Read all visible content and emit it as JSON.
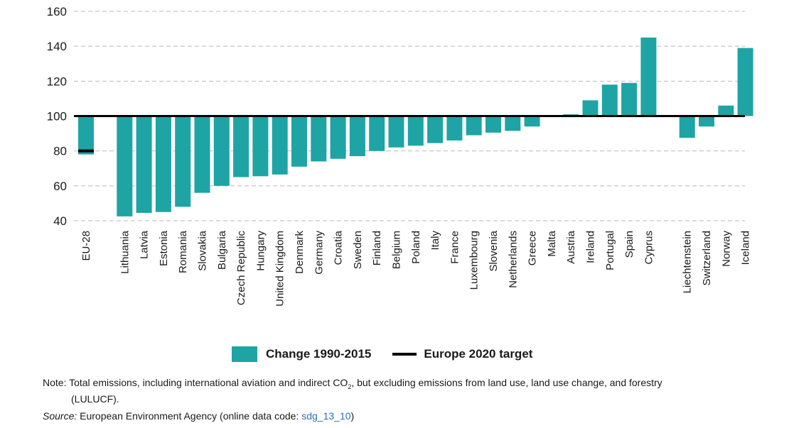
{
  "chart_data": {
    "type": "bar",
    "baseline": 100,
    "ylim": [
      40,
      160
    ],
    "yticks": [
      40,
      60,
      80,
      100,
      120,
      140,
      160
    ],
    "grid": true,
    "legend_position": "bottom",
    "categories": [
      "EU-28",
      "Lithuania",
      "Latvia",
      "Estonia",
      "Romania",
      "Slovakia",
      "Bulgaria",
      "Czech Republic",
      "Hungary",
      "United Kingdom",
      "Denmark",
      "Germany",
      "Croatia",
      "Sweden",
      "Finland",
      "Belgium",
      "Poland",
      "Italy",
      "France",
      "Luxembourg",
      "Slovenia",
      "Netherlands",
      "Greece",
      "Malta",
      "Austria",
      "Ireland",
      "Portugal",
      "Spain",
      "Cyprus",
      "Liechtenstein",
      "Switzerland",
      "Norway",
      "Iceland"
    ],
    "groups": [
      1,
      28,
      4
    ],
    "series": [
      {
        "name": "Change 1990-2015",
        "type": "bar",
        "color": "#1ea4a4",
        "values": [
          78,
          42.5,
          44.5,
          45,
          48,
          56,
          60,
          65,
          65.5,
          66.5,
          71,
          74,
          75.5,
          77,
          80,
          82,
          83,
          84.5,
          86,
          89,
          90.5,
          91.5,
          94,
          99.5,
          101,
          109,
          118,
          119,
          145,
          87.5,
          94,
          106,
          139
        ]
      },
      {
        "name": "Europe 2020 target",
        "type": "line",
        "color": "#000000",
        "values": [
          80,
          null,
          null,
          null,
          null,
          null,
          null,
          null,
          null,
          null,
          null,
          null,
          null,
          null,
          null,
          null,
          null,
          null,
          null,
          null,
          null,
          null,
          null,
          null,
          null,
          null,
          null,
          null,
          null,
          null,
          null,
          null,
          null
        ]
      }
    ]
  },
  "legend": {
    "bar_label": "Change 1990-2015",
    "line_label": "Europe 2020 target"
  },
  "note": {
    "text_before": "Note: Total emissions, including international aviation and indirect CO",
    "subscript": "2",
    "text_after": ", but excluding emissions from land use, land use change, and forestry",
    "line2": "(LULUCF)."
  },
  "source": {
    "label": "Source:",
    "text": " European Environment Agency (online data code: ",
    "code": "sdg_13_10",
    "close": ")"
  }
}
